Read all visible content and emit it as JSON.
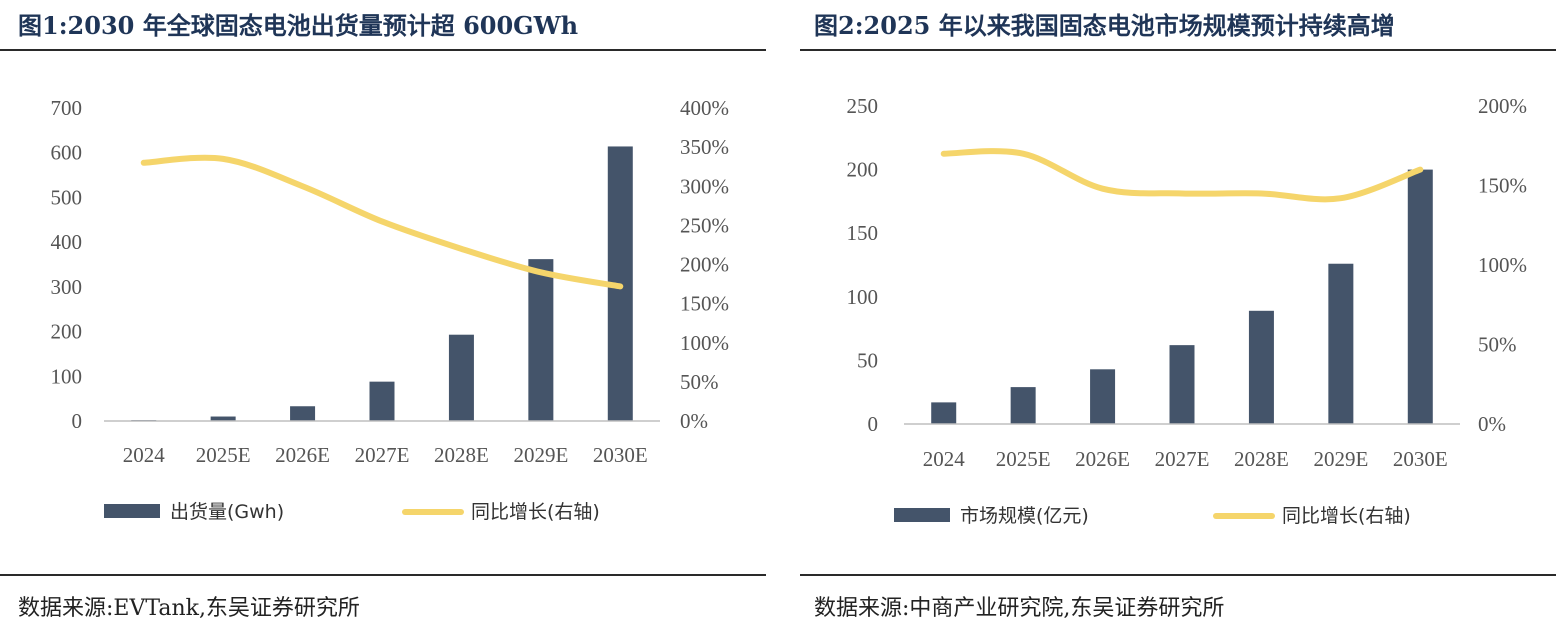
{
  "panels": [
    {
      "title": "图1:2030 年全球固态电池出货量预计超 600GWh",
      "source": "数据来源:EVTank,东吴证券研究所",
      "chart_data": {
        "type": "bar+line",
        "categories": [
          "2024",
          "2025E",
          "2026E",
          "2027E",
          "2028E",
          "2029E",
          "2030E"
        ],
        "series": [
          {
            "name": "出货量(Gwh)",
            "type": "bar",
            "axis": "left",
            "values": [
              2,
              10,
              33,
              88,
              193,
              362,
              614
            ]
          },
          {
            "name": "同比增长(右轴)",
            "type": "line",
            "axis": "right",
            "values": [
              3.3,
              3.35,
              3.0,
              2.55,
              2.2,
              1.9,
              1.72
            ]
          }
        ],
        "left_axis": {
          "min": 0,
          "max": 700,
          "step": 100,
          "ticks": [
            "0",
            "100",
            "200",
            "300",
            "400",
            "500",
            "600",
            "700"
          ]
        },
        "right_axis": {
          "min": 0,
          "max": 4,
          "step": 0.5,
          "ticks": [
            "0%",
            "50%",
            "100%",
            "150%",
            "200%",
            "250%",
            "300%",
            "350%",
            "400%"
          ]
        },
        "bar_color": "#44546a",
        "line_color": "#f5d56b",
        "legend_position": "bottom"
      }
    },
    {
      "title": "图2:2025 年以来我国固态电池市场规模预计持续高增",
      "source": "数据来源:中商产业研究院,东吴证券研究所",
      "chart_data": {
        "type": "bar+line",
        "categories": [
          "2024",
          "2025E",
          "2026E",
          "2027E",
          "2028E",
          "2029E",
          "2030E"
        ],
        "series": [
          {
            "name": "市场规模(亿元)",
            "type": "bar",
            "axis": "left",
            "values": [
              17,
              29,
              43,
              62,
              89,
              126,
              200
            ]
          },
          {
            "name": "同比增长(右轴)",
            "type": "line",
            "axis": "right",
            "values": [
              1.7,
              1.7,
              1.48,
              1.45,
              1.45,
              1.42,
              1.6
            ]
          }
        ],
        "left_axis": {
          "min": 0,
          "max": 250,
          "step": 50,
          "ticks": [
            "0",
            "50",
            "100",
            "150",
            "200",
            "250"
          ]
        },
        "right_axis": {
          "min": 0,
          "max": 2,
          "step": 0.5,
          "ticks": [
            "0%",
            "50%",
            "100%",
            "150%",
            "200%"
          ]
        },
        "bar_color": "#44546a",
        "line_color": "#f5d56b",
        "legend_position": "bottom"
      }
    }
  ]
}
